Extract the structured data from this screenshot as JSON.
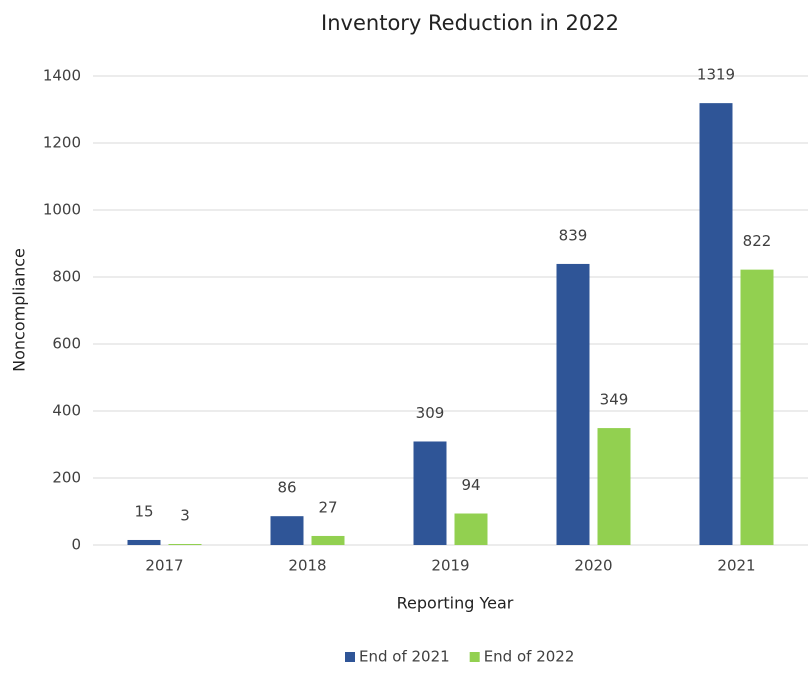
{
  "chart_data": {
    "type": "bar",
    "title": "Inventory Reduction in 2022",
    "x_label": "Reporting Year",
    "y_label": "Noncompliance",
    "categories": [
      "2017",
      "2018",
      "2019",
      "2020",
      "2021"
    ],
    "series": [
      {
        "name": "End of 2021",
        "color": "#2f5597",
        "values": [
          15,
          86,
          309,
          839,
          1319
        ]
      },
      {
        "name": "End of 2022",
        "color": "#92d050",
        "values": [
          3,
          27,
          94,
          349,
          822
        ]
      }
    ],
    "ylim": [
      0,
      1400
    ],
    "yticks": [
      0,
      200,
      400,
      600,
      800,
      1000,
      1200,
      1400
    ],
    "grid": true,
    "legend": "bottom"
  }
}
